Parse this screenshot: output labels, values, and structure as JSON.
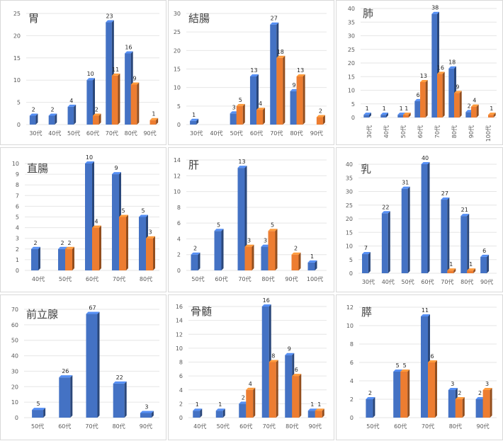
{
  "colors": {
    "series_a": "#4472C4",
    "series_b": "#ED7D31",
    "grid": "#e6e6e6",
    "panel_border": "#d9d9d9"
  },
  "chart_data": [
    {
      "type": "bar",
      "title": "胃",
      "categories": [
        "30代",
        "40代",
        "50代",
        "60代",
        "70代",
        "80代",
        "90代"
      ],
      "ylim": [
        0,
        25
      ],
      "yticks": [
        0,
        5,
        10,
        15,
        20,
        25
      ],
      "series": [
        {
          "values": [
            2,
            2,
            4,
            10,
            23,
            16,
            null
          ]
        },
        {
          "values": [
            null,
            null,
            null,
            2,
            11,
            9,
            1
          ]
        }
      ],
      "grid": true
    },
    {
      "type": "bar",
      "title": "結腸",
      "categories": [
        "30代",
        "40代",
        "50代",
        "60代",
        "70代",
        "80代",
        "90代"
      ],
      "ylim": [
        0,
        30
      ],
      "yticks": [
        0,
        5,
        10,
        15,
        20,
        25,
        30
      ],
      "series": [
        {
          "values": [
            1,
            null,
            3,
            13,
            27,
            9,
            null
          ]
        },
        {
          "values": [
            null,
            null,
            5,
            4,
            18,
            13,
            2
          ]
        }
      ],
      "grid": true
    },
    {
      "type": "bar",
      "title": "肺",
      "categories": [
        "30代",
        "40代",
        "50代",
        "60代",
        "70代",
        "80代",
        "90代",
        "100代"
      ],
      "ylim": [
        0,
        40
      ],
      "yticks": [
        0,
        5,
        10,
        15,
        20,
        25,
        30,
        35,
        40
      ],
      "series": [
        {
          "values": [
            1,
            1,
            1,
            6,
            38,
            18,
            2,
            null
          ]
        },
        {
          "values": [
            null,
            null,
            1,
            13,
            16,
            9,
            4,
            1
          ]
        }
      ],
      "grid": true
    },
    {
      "type": "bar",
      "title": "直腸",
      "categories": [
        "40代",
        "50代",
        "60代",
        "70代",
        "80代"
      ],
      "ylim": [
        0,
        10
      ],
      "yticks": [
        0,
        1,
        2,
        3,
        4,
        5,
        6,
        7,
        8,
        9,
        10
      ],
      "series": [
        {
          "values": [
            2,
            2,
            10,
            9,
            5
          ]
        },
        {
          "values": [
            null,
            2,
            4,
            5,
            3
          ]
        }
      ],
      "grid": true
    },
    {
      "type": "bar",
      "title": "肝",
      "categories": [
        "50代",
        "60代",
        "70代",
        "80代",
        "90代",
        "100代"
      ],
      "ylim": [
        0,
        14
      ],
      "yticks": [
        0,
        2,
        4,
        6,
        8,
        10,
        12,
        14
      ],
      "series": [
        {
          "values": [
            2,
            5,
            13,
            3,
            null,
            1
          ]
        },
        {
          "values": [
            null,
            null,
            3,
            5,
            2,
            null
          ]
        }
      ],
      "grid": true
    },
    {
      "type": "bar",
      "title": "乳",
      "categories": [
        "30代",
        "40代",
        "50代",
        "60代",
        "70代",
        "80代",
        "90代"
      ],
      "ylim": [
        0,
        40
      ],
      "yticks": [
        0,
        5,
        10,
        15,
        20,
        25,
        30,
        35,
        40
      ],
      "series": [
        {
          "values": [
            7,
            22,
            31,
            40,
            27,
            21,
            6
          ]
        },
        {
          "values": [
            null,
            null,
            null,
            null,
            1,
            1,
            null
          ]
        }
      ],
      "grid": true
    },
    {
      "type": "bar",
      "title": "前立腺",
      "categories": [
        "50代",
        "60代",
        "70代",
        "80代",
        "90代"
      ],
      "ylim": [
        0,
        70
      ],
      "yticks": [
        0,
        10,
        20,
        30,
        40,
        50,
        60,
        70
      ],
      "series": [
        {
          "values": [
            5,
            26,
            67,
            22,
            3
          ]
        }
      ],
      "grid": true
    },
    {
      "type": "bar",
      "title": "骨髄",
      "categories": [
        "40代",
        "50代",
        "60代",
        "70代",
        "80代",
        "90代"
      ],
      "ylim": [
        0,
        16
      ],
      "yticks": [
        0,
        2,
        4,
        6,
        8,
        10,
        12,
        14,
        16
      ],
      "series": [
        {
          "values": [
            1,
            1,
            2,
            16,
            9,
            1
          ]
        },
        {
          "values": [
            null,
            null,
            4,
            8,
            6,
            1
          ]
        }
      ],
      "grid": true
    },
    {
      "type": "bar",
      "title": "膵",
      "categories": [
        "50代",
        "60代",
        "70代",
        "80代",
        "90代"
      ],
      "ylim": [
        0,
        12
      ],
      "yticks": [
        0,
        2,
        4,
        6,
        8,
        10,
        12
      ],
      "series": [
        {
          "values": [
            2,
            5,
            11,
            3,
            2
          ]
        },
        {
          "values": [
            null,
            5,
            6,
            2,
            3
          ]
        }
      ],
      "grid": true
    }
  ]
}
